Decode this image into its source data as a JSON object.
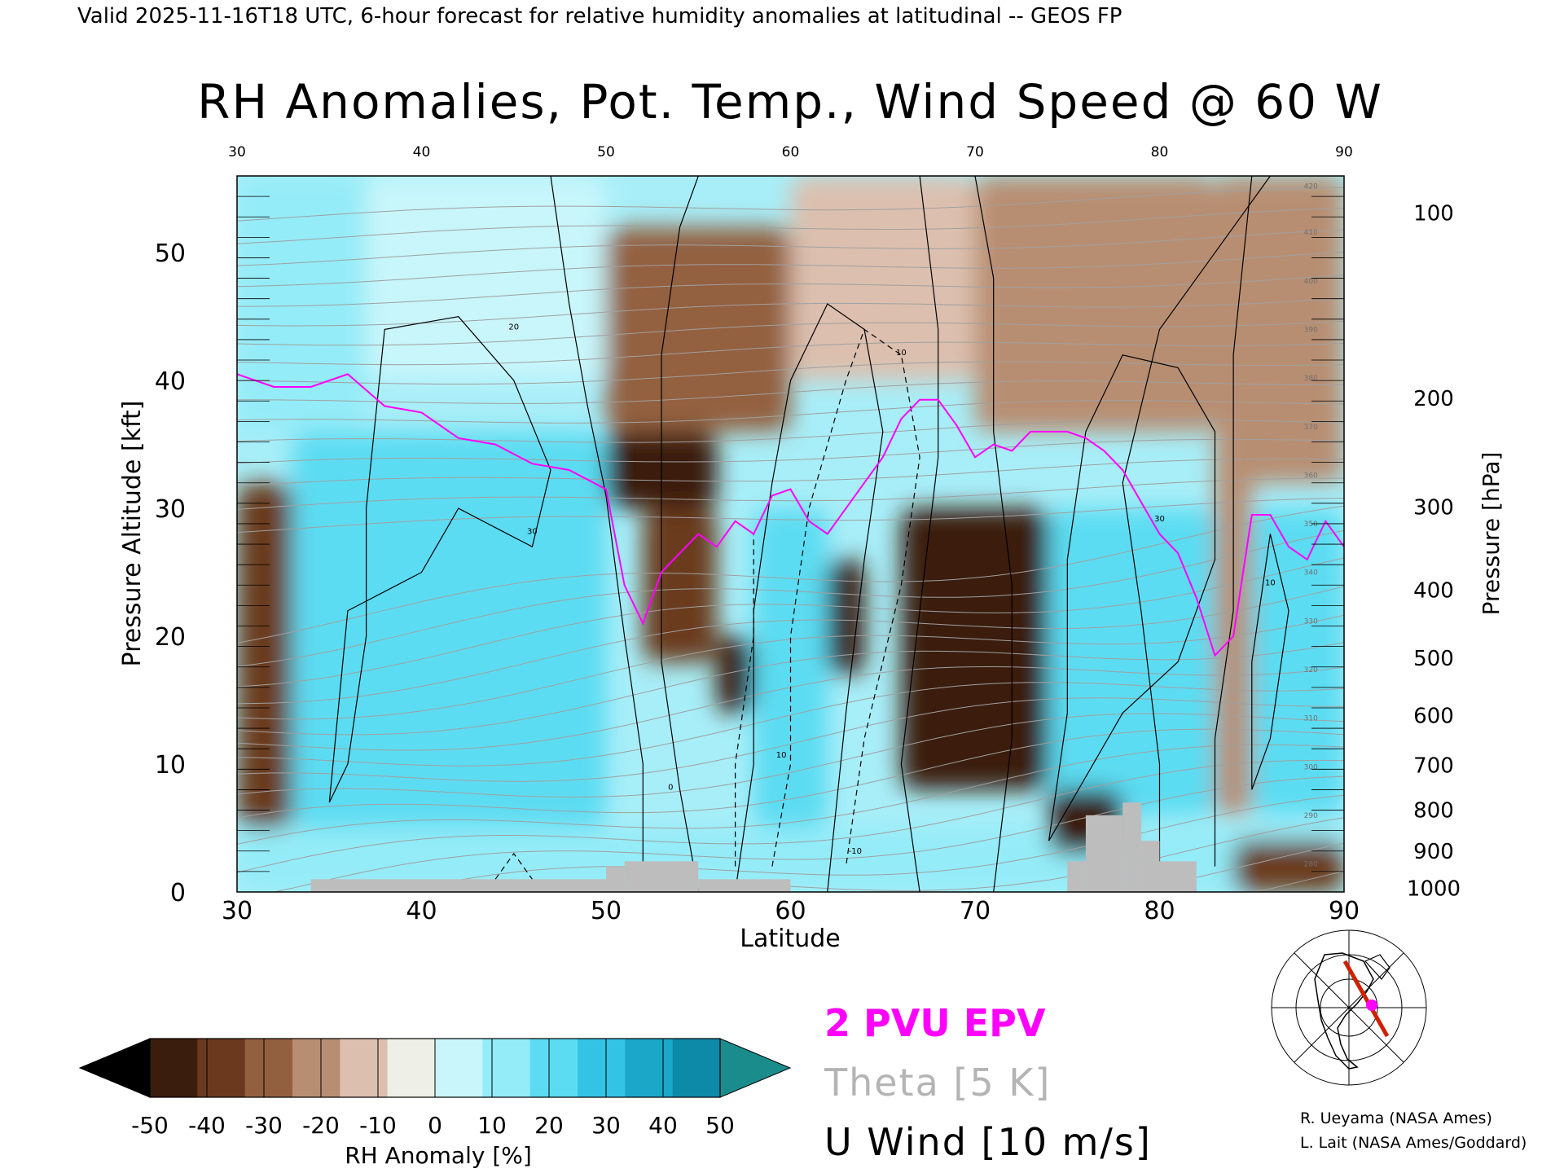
{
  "header": "Valid 2025-11-16T18 UTC, 6-hour forecast for relative humidity anomalies at latitudinal -- GEOS FP",
  "chart_data": {
    "type": "heatmap",
    "title": "RH Anomalies, Pot. Temp., Wind Speed @ 60 W",
    "xlabel": "Latitude",
    "ylabel_left": "Pressure Altitude [kft]",
    "ylabel_right": "Pressure [hPa]",
    "xlim": [
      30,
      90
    ],
    "ylim": [
      0,
      56
    ],
    "x_ticks": [
      30,
      40,
      50,
      60,
      70,
      80,
      90
    ],
    "y_ticks": [
      0,
      10,
      20,
      30,
      40,
      50
    ],
    "pressure_ticks": [
      {
        "label": "100",
        "kft": 53.1
      },
      {
        "label": "200",
        "kft": 38.6
      },
      {
        "label": "300",
        "kft": 30.1
      },
      {
        "label": "400",
        "kft": 23.6
      },
      {
        "label": "500",
        "kft": 18.3
      },
      {
        "label": "600",
        "kft": 13.8
      },
      {
        "label": "700",
        "kft": 9.9
      },
      {
        "label": "800",
        "kft": 6.4
      },
      {
        "label": "900",
        "kft": 3.2
      },
      {
        "label": "1000",
        "kft": 0.3
      }
    ],
    "rh_anomaly_regions": [
      {
        "lat": [
          30,
          37
        ],
        "kft": [
          36,
          56
        ],
        "rh": 20
      },
      {
        "lat": [
          37,
          50
        ],
        "kft": [
          40,
          56
        ],
        "rh": 5
      },
      {
        "lat": [
          50,
          60
        ],
        "kft": [
          36,
          52
        ],
        "rh": -20
      },
      {
        "lat": [
          60,
          70
        ],
        "kft": [
          40,
          56
        ],
        "rh": -8
      },
      {
        "lat": [
          70,
          83
        ],
        "kft": [
          36,
          56
        ],
        "rh": -15
      },
      {
        "lat": [
          83,
          90
        ],
        "kft": [
          32,
          56
        ],
        "rh": -12
      },
      {
        "lat": [
          30,
          33
        ],
        "kft": [
          5,
          32
        ],
        "rh": -30
      },
      {
        "lat": [
          33,
          50
        ],
        "kft": [
          5,
          36
        ],
        "rh": 30
      },
      {
        "lat": [
          50,
          56
        ],
        "kft": [
          30,
          36
        ],
        "rh": -50
      },
      {
        "lat": [
          52,
          56
        ],
        "kft": [
          18,
          30
        ],
        "rh": -30
      },
      {
        "lat": [
          56,
          58
        ],
        "kft": [
          14,
          20
        ],
        "rh": -50
      },
      {
        "lat": [
          58,
          62
        ],
        "kft": [
          5,
          30
        ],
        "rh": 25
      },
      {
        "lat": [
          62,
          64
        ],
        "kft": [
          17,
          26
        ],
        "rh": -40
      },
      {
        "lat": [
          66,
          74
        ],
        "kft": [
          8,
          30
        ],
        "rh": -40
      },
      {
        "lat": [
          67,
          72
        ],
        "kft": [
          10,
          24
        ],
        "rh": -50
      },
      {
        "lat": [
          74,
          83
        ],
        "kft": [
          6,
          30
        ],
        "rh": 25
      },
      {
        "lat": [
          83,
          85
        ],
        "kft": [
          6,
          36
        ],
        "rh": -10
      },
      {
        "lat": [
          85,
          90
        ],
        "kft": [
          6,
          30
        ],
        "rh": 30
      },
      {
        "lat": [
          30,
          90
        ],
        "kft": [
          0,
          5
        ],
        "rh": 15
      },
      {
        "lat": [
          74,
          78
        ],
        "kft": [
          3,
          8
        ],
        "rh": -50
      },
      {
        "lat": [
          84,
          90
        ],
        "kft": [
          0,
          4
        ],
        "rh": -30
      }
    ],
    "epv_2pvu": {
      "lat": [
        30,
        32,
        34,
        36,
        38,
        40,
        42,
        44,
        46,
        48,
        50,
        51,
        52,
        53,
        54,
        55,
        56,
        57,
        58,
        59,
        60,
        61,
        62,
        63,
        64,
        65,
        66,
        67,
        68,
        69,
        70,
        71,
        72,
        73,
        74,
        75,
        76,
        77,
        78,
        79,
        80,
        81,
        82,
        83,
        84,
        85,
        86,
        87,
        88,
        89,
        90
      ],
      "kft": [
        40.5,
        39.5,
        39.5,
        40.5,
        38,
        37.5,
        35.5,
        35,
        33.5,
        33,
        31.5,
        24,
        21,
        25,
        26.5,
        28,
        27,
        29,
        28,
        31,
        31.5,
        29,
        28,
        30,
        32,
        34,
        37,
        38.5,
        38.5,
        36.5,
        34,
        35,
        34.5,
        36,
        36,
        36,
        35.5,
        34.5,
        33,
        30.5,
        28,
        26.5,
        23,
        18.5,
        20,
        29.5,
        29.5,
        27,
        26,
        29,
        27
      ]
    },
    "theta_contour_labels": [
      "280",
      "290",
      "300",
      "310",
      "320",
      "330",
      "340",
      "350",
      "360",
      "370",
      "380",
      "390",
      "400",
      "410",
      "420"
    ],
    "wind_contour_labels": [
      "-10",
      "0",
      "10",
      "20",
      "30"
    ],
    "terrain": [
      {
        "lat": [
          34,
          50
        ],
        "kft": 1
      },
      {
        "lat": [
          50,
          51
        ],
        "kft": 2
      },
      {
        "lat": [
          51,
          55
        ],
        "kft": 2.4
      },
      {
        "lat": [
          55,
          60
        ],
        "kft": 1
      },
      {
        "lat": [
          75,
          76
        ],
        "kft": 2.4
      },
      {
        "lat": [
          76,
          78
        ],
        "kft": 6
      },
      {
        "lat": [
          78,
          79
        ],
        "kft": 7
      },
      {
        "lat": [
          79,
          80
        ],
        "kft": 4
      },
      {
        "lat": [
          80,
          82
        ],
        "kft": 2.4
      }
    ],
    "colorbar": {
      "label": "RH Anomaly [%]",
      "tick_labels": [
        "-50",
        "-40",
        "-30",
        "-20",
        "-10",
        "0",
        "10",
        "20",
        "30",
        "40",
        "50"
      ],
      "colors": [
        "#000000",
        "#3a1d0c",
        "#6b3a1e",
        "#93603f",
        "#b88e72",
        "#dcbfae",
        "#eef0e8",
        "#c8f6fb",
        "#94ecf8",
        "#5cdcf2",
        "#33c3e5",
        "#1aa7c8",
        "#0c8aa8",
        "#1a8c8c"
      ]
    },
    "legend": [
      {
        "label": "2 PVU EPV",
        "color": "#ff00ff"
      },
      {
        "label": "Theta [5 K]",
        "color": "#b4b4b4"
      },
      {
        "label": "U Wind [10 m/s]",
        "color": "#000000"
      }
    ]
  },
  "credits": [
    "R. Ueyama (NASA Ames)",
    "L. Lait (NASA Ames/Goddard)"
  ]
}
